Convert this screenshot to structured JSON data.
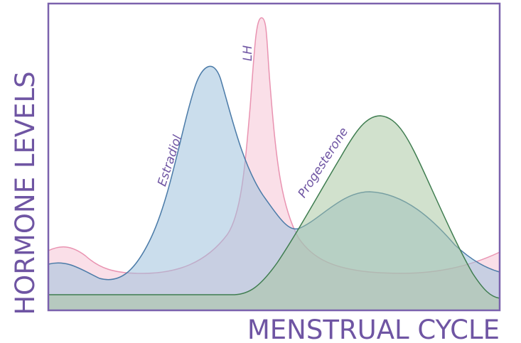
{
  "axes": {
    "y_label": "HORMONE LEVELS",
    "x_label": "MENSTRUAL CYCLE"
  },
  "curves": [
    {
      "label": "LH"
    },
    {
      "label": "Estradiol"
    },
    {
      "label": "Progesterone"
    }
  ]
}
